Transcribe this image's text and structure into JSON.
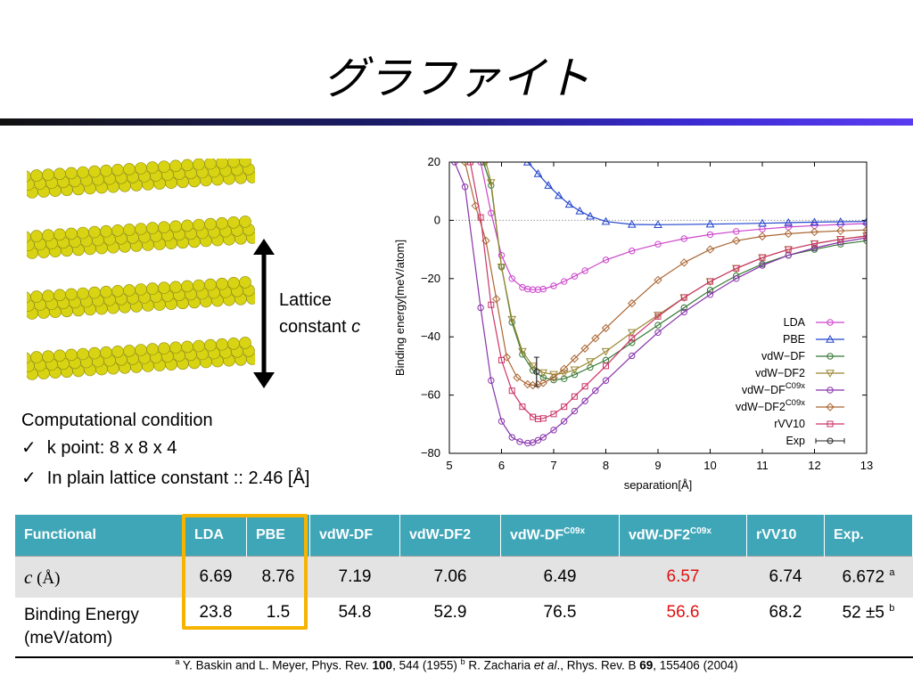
{
  "slide": {
    "title": "グラファイト",
    "lattice_label_line1": "Lattice",
    "lattice_label_line2": "constant",
    "lattice_label_symbol": "c",
    "conditions_heading": "Computational condition",
    "conditions": [
      "k point: 8 x 8 x 4",
      "In plain lattice constant :: 2.46 [Å]"
    ],
    "check_mark": "✓",
    "title_bar_colors": [
      "#111111",
      "#1c1c70",
      "#3a2ad0",
      "#5a3cf0"
    ],
    "graphene_color": "#d8d414",
    "table": {
      "headers": [
        "Functional",
        "LDA",
        "PBE",
        "vdW-DF",
        "vdW-DF2",
        "vdW-DF",
        "vdW-DF2",
        "rVV10",
        "Exp."
      ],
      "header_superscripts": {
        "5": "C09x",
        "6": "C09x"
      },
      "row1": {
        "label": "c",
        "label_unit": " (Å)",
        "values": [
          "6.69",
          "8.76",
          "7.19",
          "7.06",
          "6.49",
          "6.57",
          "6.74",
          "6.672"
        ],
        "exp_ref": "a"
      },
      "row2": {
        "label_line1": "Binding Energy",
        "label_line2": "(meV/atom)",
        "values": [
          "23.8",
          "1.5",
          "54.8",
          "52.9",
          "76.5",
          "56.6",
          "68.2",
          "52 ±5"
        ],
        "exp_ref": "b"
      },
      "header_color": "#3fa6b8",
      "highlight_color": "#f4b400",
      "red_color": "#e01010"
    },
    "footnote": {
      "a_sup": "a",
      "a_text": " Y. Baskin and L. Meyer, Phys. Rev. ",
      "a_vol": "100",
      "a_rest": ", 544 (1955)  ",
      "b_sup": "b",
      "b_text": " R. Zacharia ",
      "b_etal": "et al",
      "b_mid": "., Rhys. Rev. B ",
      "b_vol": "69",
      "b_rest": ", 155406 (2004)"
    }
  },
  "chart_data": {
    "type": "line",
    "xlabel": "separation[Å]",
    "ylabel": "Binding energy[meV/atom]",
    "xlim": [
      5,
      13
    ],
    "ylim": [
      -80,
      20
    ],
    "xticks": [
      5,
      6,
      7,
      8,
      9,
      10,
      11,
      12,
      13
    ],
    "yticks": [
      20,
      0,
      -20,
      -40,
      -60,
      -80
    ],
    "ytick_labels": [
      "20",
      "0",
      "−20",
      "−40",
      "−60",
      "−80"
    ],
    "zero_line": true,
    "legend_position": "bottom-right",
    "series": [
      {
        "name": "LDA",
        "color": "#cc44cc",
        "marker": "circle",
        "x": [
          5.6,
          5.8,
          6.0,
          6.2,
          6.4,
          6.5,
          6.6,
          6.7,
          6.8,
          7.0,
          7.2,
          7.4,
          7.6,
          8.0,
          8.5,
          9.0,
          9.5,
          10.0,
          10.5,
          11.0,
          11.5,
          12.0,
          12.5,
          13.0
        ],
        "y": [
          20,
          2.5,
          -12,
          -20,
          -23,
          -23.6,
          -23.8,
          -23.8,
          -23.6,
          -22.5,
          -21,
          -19.2,
          -17.3,
          -13.6,
          -10.5,
          -8.2,
          -6.3,
          -4.9,
          -3.8,
          -3.0,
          -2.3,
          -1.8,
          -1.4,
          -1.1
        ]
      },
      {
        "name": "PBE",
        "color": "#2244cc",
        "marker": "triangle",
        "x": [
          6.5,
          6.7,
          6.9,
          7.1,
          7.3,
          7.5,
          7.7,
          8.0,
          8.5,
          9.0,
          10.0,
          11.0,
          11.5,
          12.0,
          12.5,
          13.0
        ],
        "y": [
          20,
          16,
          12,
          8.5,
          5.5,
          3.2,
          1.4,
          -0.4,
          -1.4,
          -1.5,
          -1.3,
          -1.0,
          -0.8,
          -0.6,
          -0.5,
          -0.4
        ]
      },
      {
        "name": "vdW−DF",
        "color": "#337733",
        "marker": "circle-open",
        "x": [
          5.65,
          5.8,
          6.0,
          6.2,
          6.4,
          6.6,
          6.8,
          7.0,
          7.2,
          7.4,
          7.7,
          8.0,
          8.5,
          9.0,
          9.5,
          10.0,
          10.5,
          11.0,
          11.5,
          12.0,
          12.5,
          13.0
        ],
        "y": [
          20,
          12,
          -16,
          -35,
          -46,
          -51.5,
          -54,
          -54.8,
          -54.4,
          -53,
          -50.5,
          -48,
          -42,
          -36,
          -30,
          -24,
          -19,
          -15,
          -12,
          -10,
          -8.2,
          -7
        ]
      },
      {
        "name": "vdW−DF2",
        "color": "#998833",
        "marker": "triangle-down",
        "x": [
          5.7,
          5.8,
          6.0,
          6.2,
          6.4,
          6.6,
          6.8,
          7.0,
          7.2,
          7.4,
          7.7,
          8.0,
          8.5,
          9.0,
          9.5,
          10.0,
          10.5,
          11.0,
          11.5,
          12.0,
          12.5,
          13.0
        ],
        "y": [
          20,
          13,
          -16,
          -34,
          -45,
          -50,
          -52.3,
          -52.9,
          -52.5,
          -51.3,
          -48.5,
          -45,
          -38.5,
          -32.5,
          -26.5,
          -21,
          -16.5,
          -12.8,
          -10,
          -8,
          -6.5,
          -5.3
        ]
      },
      {
        "name": "vdW−DF",
        "name_sup": "C09x",
        "color": "#8833aa",
        "marker": "circle",
        "x": [
          5.1,
          5.3,
          5.6,
          5.8,
          6.0,
          6.2,
          6.35,
          6.5,
          6.6,
          6.7,
          6.8,
          7.0,
          7.2,
          7.4,
          7.6,
          7.8,
          8.0,
          8.5,
          9.0,
          9.5,
          10.0,
          10.5,
          11.0,
          11.5,
          12.0,
          12.5,
          13.0
        ],
        "y": [
          20,
          11.5,
          -30,
          -55,
          -69,
          -74.5,
          -76,
          -76.5,
          -76.3,
          -75.5,
          -74.5,
          -72,
          -69,
          -65.5,
          -62,
          -58.5,
          -55,
          -46.5,
          -38.5,
          -31.5,
          -25.5,
          -20,
          -15.5,
          -12,
          -9.5,
          -7.5,
          -6
        ]
      },
      {
        "name": "vdW−DF2",
        "name_sup": "C09x",
        "color": "#aa6633",
        "marker": "diamond",
        "x": [
          5.3,
          5.5,
          5.7,
          5.9,
          6.1,
          6.3,
          6.5,
          6.6,
          6.7,
          6.8,
          7.0,
          7.2,
          7.4,
          7.6,
          7.8,
          8.0,
          8.5,
          9.0,
          9.5,
          10.0,
          10.5,
          11.0,
          11.5,
          12.0,
          12.5,
          13.0
        ],
        "y": [
          20,
          5,
          -7,
          -27,
          -47,
          -54,
          -56.3,
          -56.6,
          -56.4,
          -55.8,
          -54,
          -51,
          -47.5,
          -44,
          -40.5,
          -37,
          -28.5,
          -20.5,
          -14.5,
          -10,
          -7,
          -5.5,
          -4.6,
          -4,
          -3.6,
          -3.3
        ]
      },
      {
        "name": "rVV10",
        "color": "#cc3366",
        "marker": "square",
        "x": [
          5.4,
          5.6,
          5.8,
          6.0,
          6.2,
          6.4,
          6.6,
          6.7,
          6.8,
          7.0,
          7.2,
          7.4,
          7.6,
          8.0,
          8.5,
          9.0,
          9.5,
          10.0,
          10.5,
          11.0,
          11.5,
          12.0,
          12.5,
          13.0
        ],
        "y": [
          20,
          1,
          -29,
          -48,
          -58.5,
          -64,
          -67.5,
          -68.2,
          -68,
          -66.5,
          -64,
          -60.5,
          -57,
          -50,
          -40.5,
          -33,
          -26.5,
          -21,
          -16.5,
          -12.8,
          -10,
          -8,
          -6.5,
          -5.4
        ]
      },
      {
        "name": "Exp",
        "color": "#222222",
        "marker": "errorbar",
        "x": [
          6.672
        ],
        "y": [
          -52
        ],
        "yerr": [
          5
        ]
      }
    ]
  }
}
